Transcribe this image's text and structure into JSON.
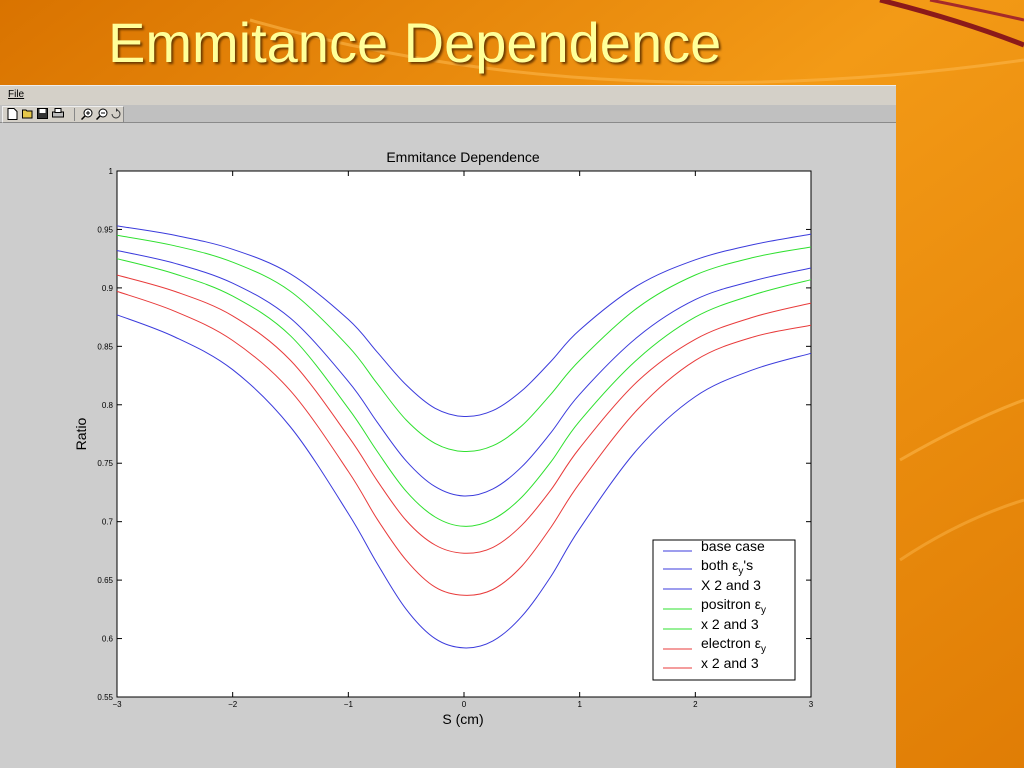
{
  "slide": {
    "title": "Emmitance Dependence"
  },
  "window": {
    "menu": {
      "file_label": "File"
    },
    "toolbar": {
      "icons": [
        "new-file-icon",
        "open-folder-icon",
        "save-icon",
        "print-icon",
        "zoom-in-icon",
        "zoom-out-icon",
        "rotate-icon"
      ]
    }
  },
  "colors": {
    "blue": "#3b3bdc",
    "green": "#2fe02f",
    "red": "#e83b3b",
    "slide_orange": "#e8890a",
    "title_yellow": "#ffff99"
  },
  "chart_data": {
    "type": "line",
    "title": "Emmitance Dependence",
    "xlabel": "S (cm)",
    "ylabel": "Ratio",
    "xlim": [
      -3,
      3
    ],
    "ylim": [
      0.55,
      1
    ],
    "xticks": [
      "−3",
      "−2",
      "−1",
      "0",
      "1",
      "2",
      "3"
    ],
    "xtick_values": [
      -3,
      -2,
      -1,
      0,
      1,
      2,
      3
    ],
    "yticks": [
      "0.55",
      "0.6",
      "0.65",
      "0.7",
      "0.75",
      "0.8",
      "0.85",
      "0.9",
      "0.95",
      "1"
    ],
    "ytick_values": [
      0.55,
      0.6,
      0.65,
      0.7,
      0.75,
      0.8,
      0.85,
      0.9,
      0.95,
      1.0
    ],
    "grid": false,
    "legend_position": "bottom-right",
    "x": [
      -3,
      -2.5,
      -2,
      -1.5,
      -1,
      -0.75,
      -0.5,
      -0.25,
      0,
      0.25,
      0.5,
      0.75,
      1,
      1.5,
      2,
      2.5,
      3
    ],
    "series": [
      {
        "name": "base case",
        "color": "blue",
        "values": [
          0.953,
          0.945,
          0.933,
          0.912,
          0.873,
          0.845,
          0.817,
          0.797,
          0.79,
          0.795,
          0.812,
          0.837,
          0.864,
          0.902,
          0.924,
          0.937,
          0.946
        ]
      },
      {
        "name": "both εy's",
        "color": "blue",
        "values": [
          0.932,
          0.921,
          0.904,
          0.874,
          0.82,
          0.785,
          0.752,
          0.73,
          0.722,
          0.728,
          0.747,
          0.776,
          0.809,
          0.858,
          0.89,
          0.906,
          0.917
        ]
      },
      {
        "name": "X 2 and 3",
        "color": "blue",
        "values": [
          0.877,
          0.858,
          0.83,
          0.781,
          0.707,
          0.664,
          0.625,
          0.6,
          0.592,
          0.598,
          0.619,
          0.653,
          0.694,
          0.762,
          0.807,
          0.83,
          0.844
        ]
      },
      {
        "name": "positron εy",
        "color": "green",
        "values": [
          0.945,
          0.936,
          0.922,
          0.897,
          0.85,
          0.818,
          0.787,
          0.767,
          0.76,
          0.765,
          0.782,
          0.809,
          0.838,
          0.883,
          0.911,
          0.926,
          0.935
        ]
      },
      {
        "name": "x 2 and 3",
        "color": "green",
        "values": [
          0.925,
          0.912,
          0.893,
          0.859,
          0.797,
          0.76,
          0.726,
          0.704,
          0.696,
          0.702,
          0.721,
          0.751,
          0.786,
          0.839,
          0.875,
          0.894,
          0.907
        ]
      },
      {
        "name": "electron εy",
        "color": "red",
        "values": [
          0.911,
          0.897,
          0.876,
          0.838,
          0.773,
          0.735,
          0.701,
          0.68,
          0.673,
          0.678,
          0.697,
          0.727,
          0.763,
          0.82,
          0.856,
          0.875,
          0.887
        ]
      },
      {
        "name": "x 2 and 3",
        "color": "red",
        "values": [
          0.897,
          0.88,
          0.855,
          0.812,
          0.743,
          0.702,
          0.667,
          0.644,
          0.637,
          0.642,
          0.662,
          0.695,
          0.733,
          0.796,
          0.838,
          0.858,
          0.868
        ]
      }
    ],
    "legend": [
      {
        "label": "base case",
        "sub": ""
      },
      {
        "label": "both ε",
        "sub": "y",
        "suffix": "'s"
      },
      {
        "label": "X 2 and 3",
        "sub": ""
      },
      {
        "label": "positron ε",
        "sub": "y"
      },
      {
        "label": "x 2 and 3",
        "sub": ""
      },
      {
        "label": "electron ε",
        "sub": "y"
      },
      {
        "label": "x 2 and 3",
        "sub": ""
      }
    ]
  }
}
